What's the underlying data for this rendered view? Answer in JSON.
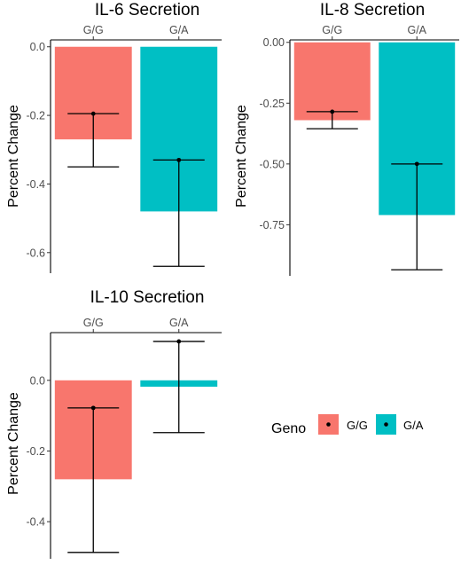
{
  "chart_data": [
    {
      "type": "bar",
      "title": "IL-6 Secretion",
      "ylabel": "Percent Change",
      "xlabel": "",
      "x_axis_position": "top",
      "categories": [
        "G/G",
        "G/A"
      ],
      "values": [
        -0.27,
        -0.48
      ],
      "point": [
        -0.195,
        -0.33
      ],
      "error_low": [
        -0.35,
        -0.64
      ],
      "error_high": [
        -0.195,
        -0.33
      ],
      "ylim": [
        -0.66,
        0.02
      ],
      "yticks": [
        0.0,
        -0.2,
        -0.4,
        -0.6
      ],
      "ytick_labels": [
        "0.0",
        "-0.2",
        "-0.4",
        "-0.6"
      ]
    },
    {
      "type": "bar",
      "title": "IL-8 Secretion",
      "ylabel": "Percent Change",
      "xlabel": "",
      "x_axis_position": "top",
      "categories": [
        "G/G",
        "G/A"
      ],
      "values": [
        -0.32,
        -0.71
      ],
      "point": [
        -0.285,
        -0.5
      ],
      "error_low": [
        -0.355,
        -0.935
      ],
      "error_high": [
        -0.285,
        -0.5
      ],
      "ylim": [
        -0.96,
        0.01
      ],
      "yticks": [
        0.0,
        -0.25,
        -0.5,
        -0.75
      ],
      "ytick_labels": [
        "0.00",
        "-0.25",
        "-0.50",
        "-0.75"
      ]
    },
    {
      "type": "bar",
      "title": "IL-10 Secretion",
      "ylabel": "Percent Change",
      "xlabel": "",
      "x_axis_position": "top",
      "categories": [
        "G/G",
        "G/A"
      ],
      "values": [
        -0.28,
        -0.018
      ],
      "point": [
        -0.078,
        0.11
      ],
      "error_low": [
        -0.487,
        -0.148
      ],
      "error_high": [
        -0.078,
        0.11
      ],
      "ylim": [
        -0.505,
        0.135
      ],
      "yticks": [
        0.0,
        -0.2,
        -0.4
      ],
      "ytick_labels": [
        "0.0",
        "-0.2",
        "-0.4"
      ]
    }
  ],
  "legend": {
    "title": "Geno",
    "placement": "bottom-right",
    "entries": [
      {
        "label": "G/G",
        "color": "#F8766D"
      },
      {
        "label": "G/A",
        "color": "#00BFC4"
      }
    ]
  },
  "colors": {
    "G/G": "#F8766D",
    "G/A": "#00BFC4",
    "errorbar": "#000000",
    "axis": "#000000"
  }
}
